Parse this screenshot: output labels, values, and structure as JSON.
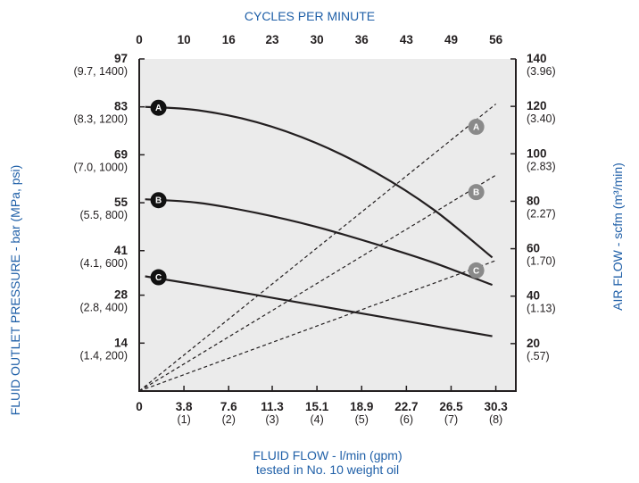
{
  "chart_data": {
    "type": "line",
    "x_bottom": {
      "label_line1": "FLUID FLOW - l/min (gpm)",
      "label_line2": "tested in No. 10 weight oil",
      "range": [
        0,
        32
      ],
      "ticks": [
        {
          "value": 0,
          "label": "0",
          "sub": ""
        },
        {
          "value": 3.8,
          "label": "3.8",
          "sub": "(1)"
        },
        {
          "value": 7.6,
          "label": "7.6",
          "sub": "(2)"
        },
        {
          "value": 11.3,
          "label": "11.3",
          "sub": "(3)"
        },
        {
          "value": 15.1,
          "label": "15.1",
          "sub": "(4)"
        },
        {
          "value": 18.9,
          "label": "18.9",
          "sub": "(5)"
        },
        {
          "value": 22.7,
          "label": "22.7",
          "sub": "(6)"
        },
        {
          "value": 26.5,
          "label": "26.5",
          "sub": "(7)"
        },
        {
          "value": 30.3,
          "label": "30.3",
          "sub": "(8)"
        }
      ]
    },
    "x_top": {
      "label": "CYCLES PER MINUTE",
      "ticks": [
        "0",
        "10",
        "16",
        "23",
        "30",
        "36",
        "43",
        "49",
        "56"
      ]
    },
    "y_left": {
      "label": "FLUID OUTLET PRESSURE - bar (MPa, psi)",
      "range": [
        0,
        97
      ],
      "ticks": [
        {
          "value": 97,
          "label": "97",
          "sub": "(9.7, 1400)"
        },
        {
          "value": 83,
          "label": "83",
          "sub": "(8.3, 1200)"
        },
        {
          "value": 69,
          "label": "69",
          "sub": "(7.0, 1000)"
        },
        {
          "value": 55,
          "label": "55",
          "sub": "(5.5, 800)"
        },
        {
          "value": 41,
          "label": "41",
          "sub": "(4.1, 600)"
        },
        {
          "value": 28,
          "label": "28",
          "sub": "(2.8, 400)"
        },
        {
          "value": 14,
          "label": "14",
          "sub": "(1.4, 200)"
        }
      ]
    },
    "y_right": {
      "label": "AIR FLOW - scfm (m³/min)",
      "range": [
        0,
        140
      ],
      "ticks": [
        {
          "value": 140,
          "label": "140",
          "sub": "(3.96)"
        },
        {
          "value": 120,
          "label": "120",
          "sub": "(3.40)"
        },
        {
          "value": 100,
          "label": "100",
          "sub": "(2.83)"
        },
        {
          "value": 80,
          "label": "80",
          "sub": "(2.27)"
        },
        {
          "value": 60,
          "label": "60",
          "sub": "(1.70)"
        },
        {
          "value": 40,
          "label": "40",
          "sub": "(1.13)"
        },
        {
          "value": 20,
          "label": "20",
          "sub": "(.57)"
        }
      ]
    },
    "pressure_series": [
      {
        "name": "A",
        "x": [
          0.5,
          5,
          10,
          15,
          20,
          25,
          30
        ],
        "y": [
          83,
          82,
          78.5,
          72.5,
          64,
          53,
          39
        ]
      },
      {
        "name": "B",
        "x": [
          0.5,
          5,
          10,
          15,
          20,
          25,
          30
        ],
        "y": [
          56,
          55,
          52,
          48,
          43,
          37.5,
          31
        ]
      },
      {
        "name": "C",
        "x": [
          0.5,
          5,
          10,
          15,
          20,
          25,
          30
        ],
        "y": [
          33.5,
          31,
          28,
          25,
          22,
          19,
          16
        ]
      }
    ],
    "airflow_series": [
      {
        "name": "A",
        "x": [
          0,
          30.3
        ],
        "y": [
          0,
          121
        ]
      },
      {
        "name": "B",
        "x": [
          0,
          30.3
        ],
        "y": [
          0,
          91
        ]
      },
      {
        "name": "C",
        "x": [
          0,
          30.3
        ],
        "y": [
          0,
          55
        ]
      }
    ],
    "markers": {
      "pressure_labels": [
        "A",
        "B",
        "C"
      ],
      "airflow_labels": [
        "A",
        "B",
        "C"
      ],
      "pressure_color": "#111111",
      "airflow_color": "#8a8a8a"
    },
    "colors": {
      "axis_title": "#2060a8",
      "plot_background": "#ebebeb",
      "line": "#231f20"
    },
    "grid": false
  }
}
